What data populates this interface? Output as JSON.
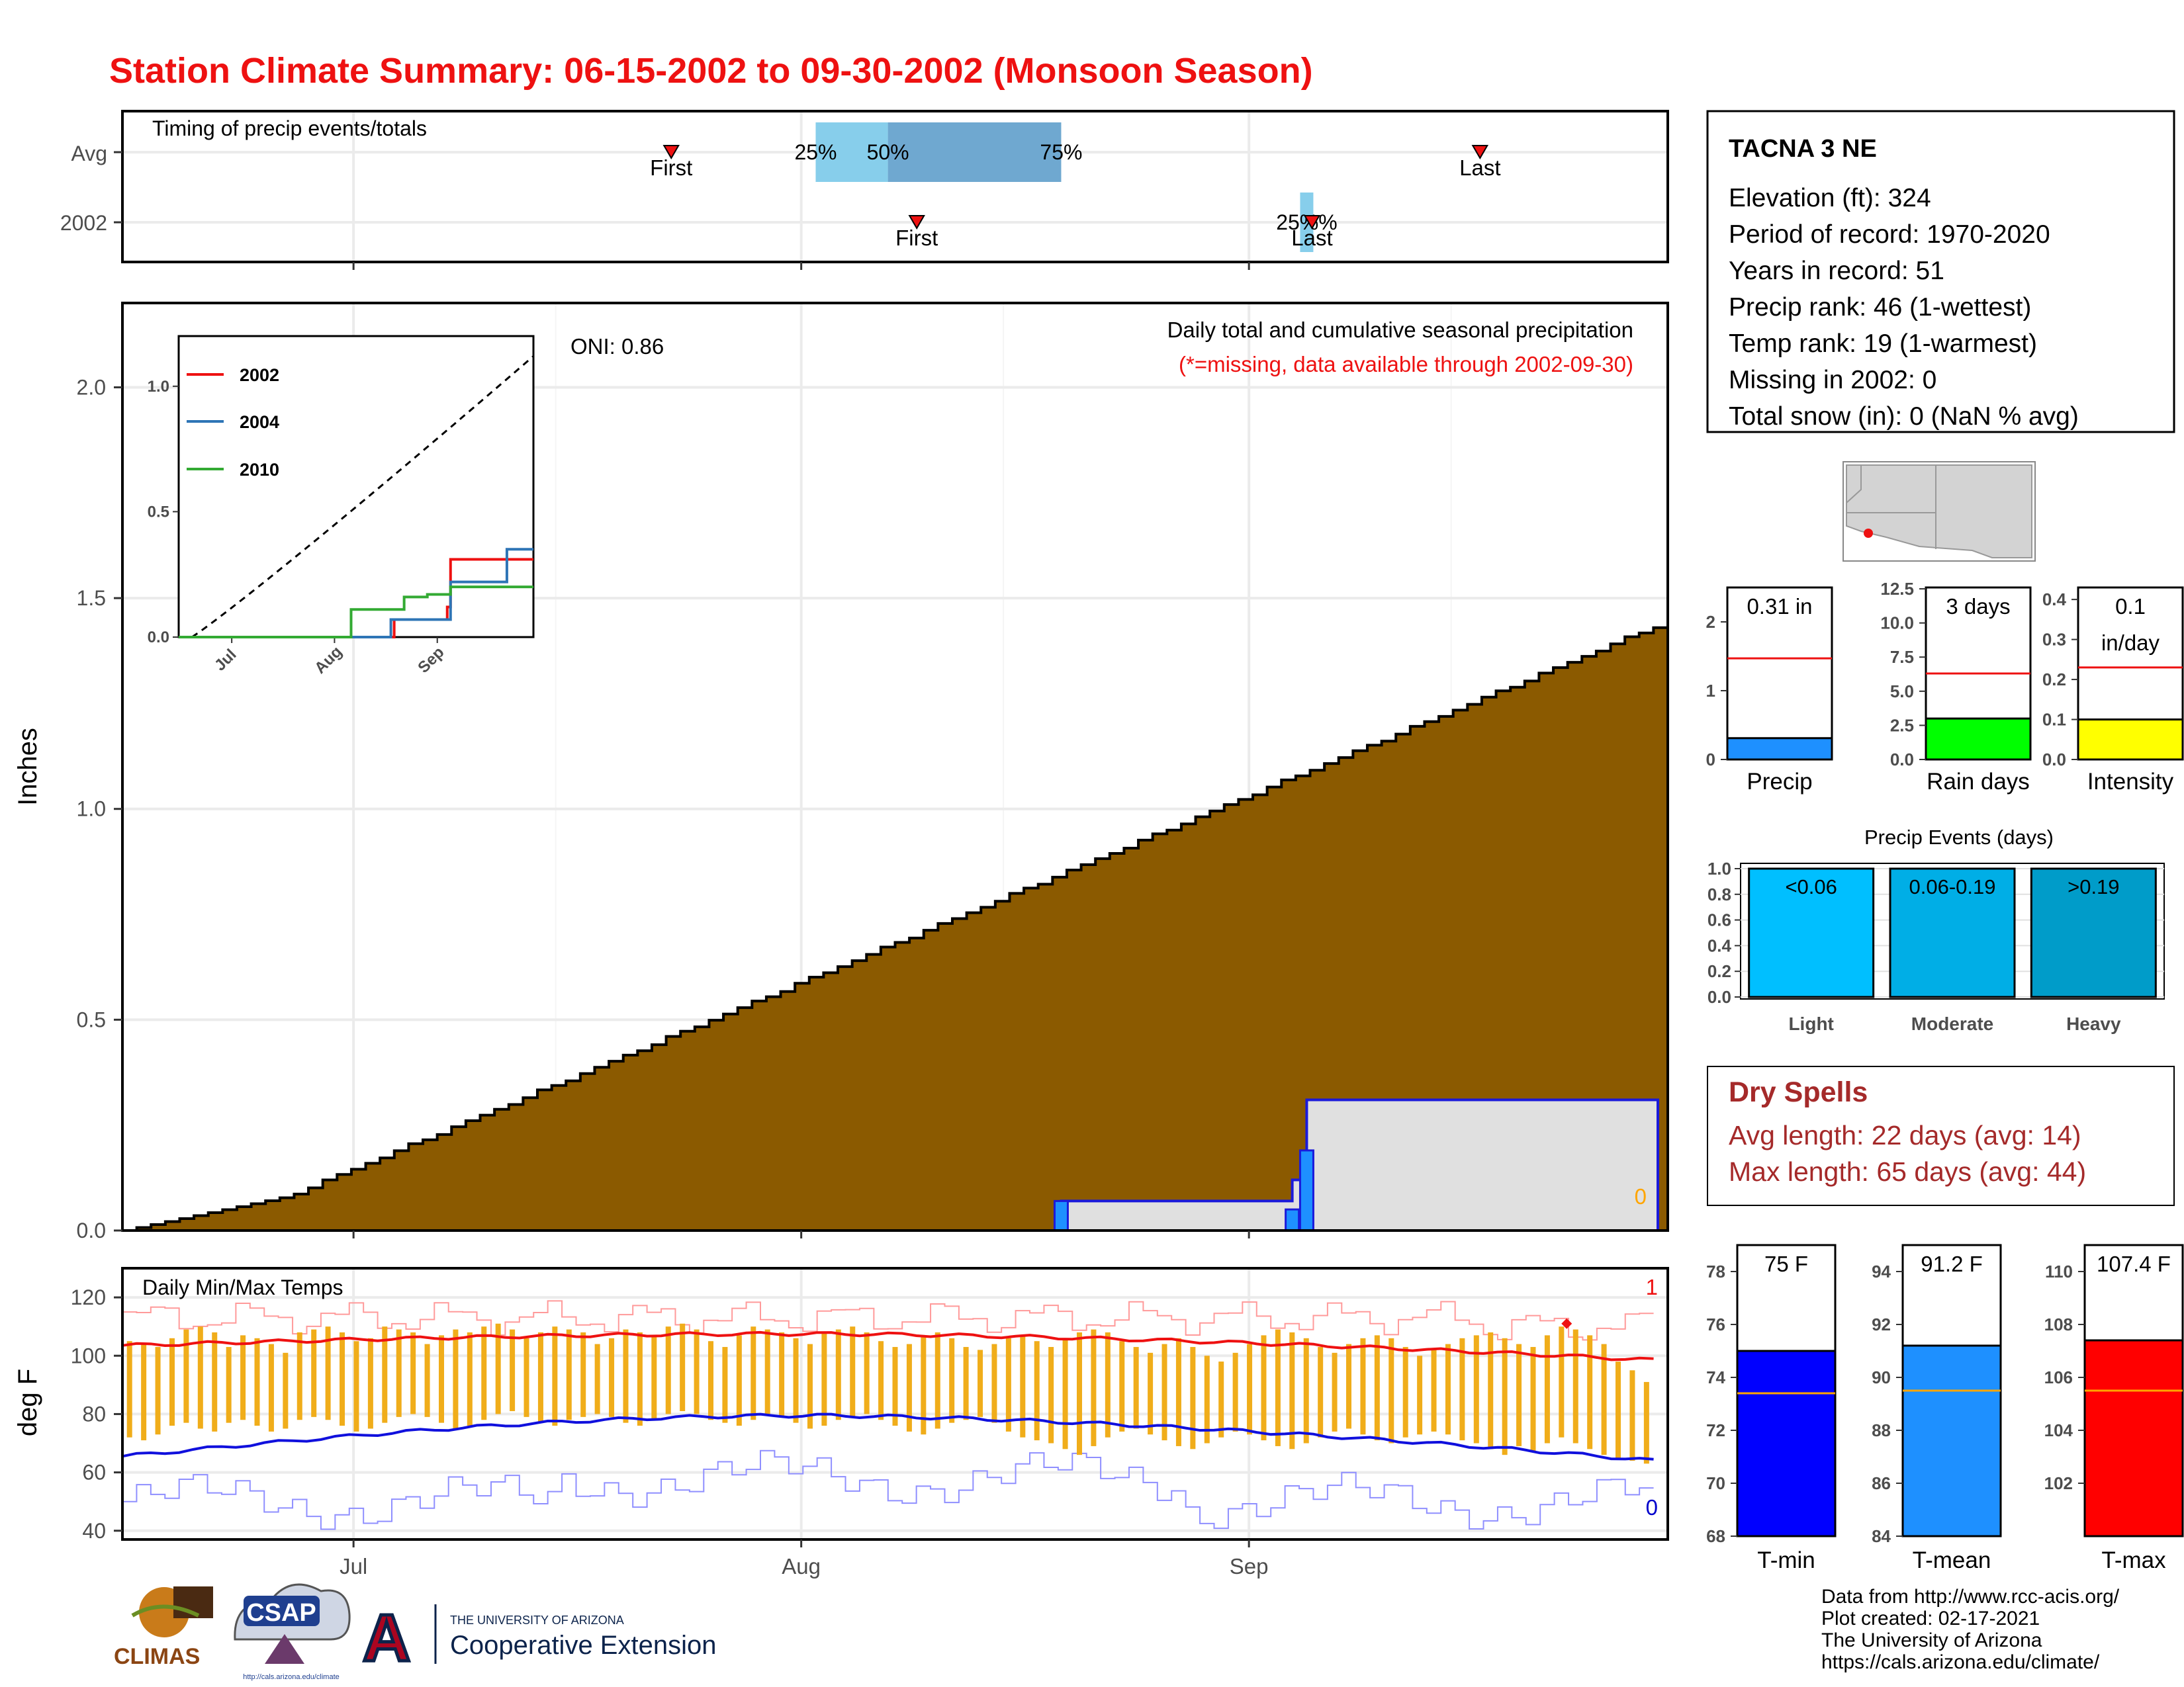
{
  "title": "Station Climate Summary: 06-15-2002 to 09-30-2002 (Monsoon Season)",
  "colors": {
    "title": "#ee1111",
    "precip_fill": "#8b5a00",
    "avg_area": "#e0e0e0",
    "avg_line": "#1a1adb",
    "precip_bar": "#1e90ff",
    "raindays_bar": "#00ff00",
    "intensity_bar": "#ffff00",
    "temp_bar": "#f0ad1a",
    "tmax_line": "#ee1111",
    "tmin_line": "#1010dd",
    "dry_spells": "#a52a2a",
    "tmin_bar": "#0000ff",
    "tmean_bar": "#1e90ff",
    "tmax_bar": "#ff0000",
    "avg_marker": "#ffa500",
    "q_light": "#87ceeb",
    "q_dark": "#6fa8d0",
    "event_light": "#00bfff",
    "event_moderate": "#00aee6",
    "event_heavy": "#009cc9"
  },
  "icons": [
    "climas-logo",
    "csap-logo",
    "university-of-arizona-logo"
  ],
  "chart_data": [
    {
      "type": "timeline",
      "title": "Timing of precip events/totals",
      "rows": [
        "Avg",
        "2002"
      ],
      "x_axis": {
        "range": [
          "2002-06-15",
          "2002-09-30"
        ],
        "ticks": [
          "Jul",
          "Aug",
          "Sep"
        ]
      },
      "avg": {
        "first": "2002-07-23",
        "q25": "2002-08-02",
        "q50": "2002-08-07",
        "q75": "2002-08-19",
        "last": "2002-09-17",
        "labels": {
          "first": "First",
          "last": "Last",
          "q25": "25%",
          "q50": "50%",
          "q75": "75%"
        }
      },
      "year": {
        "first": "2002-08-09",
        "q25": "2002-09-05",
        "q50": "2002-09-05",
        "q75": "2002-09-05",
        "last": "2002-09-05",
        "labels": {
          "first": "First",
          "last": "Last",
          "overlap": "25%%"
        }
      }
    },
    {
      "type": "area",
      "title": "Daily total and cumulative seasonal precipitation",
      "subtitle": "(*=missing, data available through 2002-09-30)",
      "ylabel": "Inches",
      "ylim": [
        0,
        2.2
      ],
      "yticks": [
        "0.0",
        "0.5",
        "1.0",
        "1.5",
        "2.0"
      ],
      "x_ticks": [
        "Jul",
        "Aug",
        "Sep"
      ],
      "oni_label": "ONI: 0.86",
      "corner_label": "0",
      "avg_cumulative_start_date": "2002-06-15",
      "avg_cumulative_daily_increment": 0.01336,
      "avg_cumulative_end": 1.43,
      "observed": [
        {
          "date": "2002-08-19",
          "cumulative": 0.07
        },
        {
          "date": "2002-09-04",
          "cumulative": 0.12
        },
        {
          "date": "2002-09-05",
          "cumulative": 0.31
        }
      ],
      "daily_bars": [
        {
          "date": "2002-08-19",
          "value": 0.07
        },
        {
          "date": "2002-09-04",
          "value": 0.05
        },
        {
          "date": "2002-09-05",
          "value": 0.19
        }
      ]
    },
    {
      "type": "line",
      "title": "inset cumulative precip comparison",
      "ylim": [
        0,
        1.2
      ],
      "yticks": [
        "0.0",
        "0.5",
        "1.0"
      ],
      "x_ticks": [
        "Jul",
        "Aug",
        "Sep"
      ],
      "series": [
        {
          "name": "2002",
          "color": "#ee1111",
          "steps": [
            [
              "2002-08-19",
              0.07
            ],
            [
              "2002-09-04",
              0.12
            ],
            [
              "2002-09-05",
              0.31
            ]
          ]
        },
        {
          "name": "2004",
          "color": "#2e75b6",
          "steps": [
            [
              "2002-08-18",
              0.07
            ],
            [
              "2002-09-05",
              0.22
            ],
            [
              "2002-09-05",
              0.22
            ],
            [
              "2002-09-22",
              0.35
            ]
          ]
        },
        {
          "name": "2010",
          "color": "#33aa33",
          "steps": [
            [
              "2002-08-06",
              0.11
            ],
            [
              "2002-08-22",
              0.16
            ],
            [
              "2002-08-29",
              0.17
            ],
            [
              "2002-09-05",
              0.2
            ]
          ]
        }
      ],
      "avg_dashed": true
    },
    {
      "type": "bar",
      "title": "Daily Min/Max Temps",
      "ylabel": "deg F",
      "ylim": [
        37,
        130
      ],
      "yticks": [
        "40",
        "60",
        "80",
        "100",
        "120"
      ],
      "x_ticks": [
        "Jul",
        "Aug",
        "Sep"
      ],
      "corner_top": "1",
      "corner_bottom": "0",
      "start_date": "2002-06-15",
      "tmax": [
        105,
        104,
        103,
        106,
        109,
        110,
        108,
        103,
        107,
        106,
        104,
        101,
        108,
        109,
        110,
        108,
        105,
        106,
        110,
        109,
        108,
        104,
        107,
        109,
        108,
        110,
        111,
        109,
        106,
        108,
        110,
        109,
        108,
        104,
        106,
        109,
        108,
        107,
        110,
        111,
        109,
        105,
        103,
        107,
        110,
        109,
        108,
        106,
        104,
        108,
        109,
        110,
        108,
        105,
        103,
        104,
        107,
        108,
        106,
        103,
        102,
        104,
        106,
        107,
        105,
        103,
        106,
        108,
        109,
        108,
        105,
        103,
        101,
        104,
        106,
        103,
        100,
        98,
        101,
        104,
        107,
        109,
        108,
        106,
        103,
        101,
        104,
        106,
        107,
        106,
        103,
        100,
        102,
        104,
        106,
        107,
        108,
        106,
        104,
        103,
        107,
        110,
        109,
        107,
        104,
        98,
        95,
        91
      ],
      "tmin": [
        72,
        71,
        73,
        76,
        77,
        75,
        74,
        77,
        78,
        76,
        74,
        75,
        78,
        79,
        78,
        76,
        74,
        75,
        77,
        79,
        80,
        79,
        77,
        75,
        76,
        78,
        80,
        81,
        79,
        77,
        76,
        78,
        79,
        80,
        79,
        77,
        76,
        78,
        80,
        81,
        80,
        78,
        77,
        76,
        78,
        80,
        79,
        77,
        75,
        76,
        78,
        79,
        80,
        78,
        76,
        74,
        73,
        75,
        77,
        78,
        79,
        77,
        74,
        72,
        71,
        70,
        68,
        66,
        69,
        72,
        74,
        75,
        73,
        71,
        69,
        68,
        70,
        72,
        74,
        73,
        71,
        69,
        68,
        70,
        72,
        74,
        75,
        73,
        71,
        70,
        72,
        73,
        74,
        73,
        71,
        70,
        68,
        66,
        69,
        67,
        70,
        72,
        70,
        68,
        66,
        65,
        64,
        63
      ],
      "tmax_avg_start": 103.5,
      "tmax_avg_peak": 107.5,
      "tmax_avg_end": 98.5,
      "tmin_avg_start": 65.5,
      "tmin_avg_peak": 79.5,
      "tmin_avg_end": 64,
      "record_high_marker": {
        "date": "2002-09-23",
        "value": 111
      }
    }
  ],
  "info_box": {
    "station": "TACNA 3 NE",
    "lines": [
      "Elevation (ft): 324",
      "Period of record: 1970-2020",
      "Years in record: 51",
      "Precip rank: 46 (1-wettest)",
      "Temp rank: 19 (1-warmest)",
      "Missing in 2002: 0",
      "Total snow (in): 0 (NaN % avg)"
    ]
  },
  "mini_bars": [
    {
      "key": "precip",
      "label": "Precip",
      "value_label": "0.31 in",
      "value": 0.31,
      "avg": 1.47,
      "ymax": 2.5,
      "yticks": [
        "0",
        "1",
        "2"
      ],
      "ytick_values": [
        0,
        1,
        2
      ]
    },
    {
      "key": "raindays",
      "label": "Rain days",
      "value_label": "3 days",
      "value": 3,
      "avg": 6.3,
      "ymax": 12.6,
      "yticks": [
        "0.0",
        "2.5",
        "5.0",
        "7.5",
        "10.0",
        "12.5"
      ],
      "ytick_values": [
        0,
        2.5,
        5,
        7.5,
        10,
        12.5
      ]
    },
    {
      "key": "intensity",
      "label": "Intensity",
      "value_label": "0.1",
      "value_label2": "in/day",
      "value": 0.1,
      "avg": 0.23,
      "ymax": 0.43,
      "yticks": [
        "0.0",
        "0.1",
        "0.2",
        "0.3",
        "0.4"
      ],
      "ytick_values": [
        0,
        0.1,
        0.2,
        0.3,
        0.4
      ]
    }
  ],
  "precip_events": {
    "title": "Precip Events (days)",
    "yticks": [
      "0.0",
      "0.2",
      "0.4",
      "0.6",
      "0.8",
      "1.0"
    ],
    "categories": [
      {
        "label": "Light",
        "range": "<0.06",
        "value": 1
      },
      {
        "label": "Moderate",
        "range": "0.06-0.19",
        "value": 1
      },
      {
        "label": "Heavy",
        "range": ">0.19",
        "value": 1
      }
    ]
  },
  "dry_spells": {
    "title": "Dry Spells",
    "avg_length": "Avg length: 22 days (avg: 14)",
    "max_length": "Max length: 65 days (avg: 44)"
  },
  "temp_bars": [
    {
      "key": "tmin",
      "label": "T-min",
      "value_label": "75 F",
      "value": 75,
      "avg": 73.4,
      "ymin": 68,
      "ymax": 79,
      "yticks": [
        "68",
        "70",
        "72",
        "74",
        "76",
        "78"
      ],
      "ytick_values": [
        68,
        70,
        72,
        74,
        76,
        78
      ]
    },
    {
      "key": "tmean",
      "label": "T-mean",
      "value_label": "91.2 F",
      "value": 91.2,
      "avg": 89.5,
      "ymin": 84,
      "ymax": 95,
      "yticks": [
        "84",
        "86",
        "88",
        "90",
        "92",
        "94"
      ],
      "ytick_values": [
        84,
        86,
        88,
        90,
        92,
        94
      ]
    },
    {
      "key": "tmax",
      "label": "T-max",
      "value_label": "107.4 F",
      "value": 107.4,
      "avg": 105.5,
      "ymin": 100,
      "ymax": 111,
      "yticks": [
        "102",
        "104",
        "106",
        "108",
        "110"
      ],
      "ytick_values": [
        102,
        104,
        106,
        108,
        110
      ]
    }
  ],
  "credits": [
    "Data from http://www.rcc-acis.org/",
    "Plot created: 02-17-2021",
    "The University of Arizona",
    "https://cals.arizona.edu/climate/"
  ],
  "logos": {
    "climas": "CLIMAS",
    "csap": "CSAP",
    "csap_url": "http://cals.arizona.edu/climate",
    "ua_mark": "A",
    "ua_line1": "THE UNIVERSITY OF ARIZONA",
    "ua_line2": "Cooperative Extension"
  }
}
